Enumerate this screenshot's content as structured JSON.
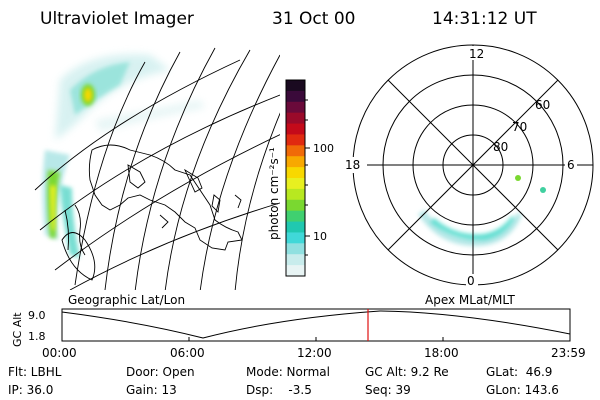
{
  "header": {
    "title": "Ultraviolet Imager",
    "date": "31 Oct 00",
    "time": "14:31:12 UT"
  },
  "colorbar": {
    "unit_label": "photon cm⁻²s⁻¹",
    "ticks": [
      "100",
      "10"
    ],
    "colors": [
      "#1a0a20",
      "#3a0a3a",
      "#6a0a3a",
      "#9a0a2a",
      "#c40a1a",
      "#e02a10",
      "#f06a08",
      "#f8a800",
      "#f8d800",
      "#e8f020",
      "#b8e820",
      "#7ad830",
      "#40d070",
      "#20c8b0",
      "#40d8d8",
      "#90e0e0",
      "#c8ecec",
      "#e8f4f4"
    ]
  },
  "geo_panel": {
    "label": "Geographic Lat/Lon"
  },
  "polar_panel": {
    "label": "Apex MLat/MLT",
    "mlt_labels": {
      "top": "12",
      "left": "18",
      "right": "6",
      "bottom": "0"
    },
    "lat_labels": [
      "60",
      "70",
      "80"
    ]
  },
  "timeline": {
    "axis_label": "GC Alt",
    "y_ticks": [
      "9.0",
      "1.8"
    ],
    "x_ticks": [
      "00:00",
      "06:00",
      "12:00",
      "18:00",
      "23:59"
    ],
    "current_marker_color": "#e01010"
  },
  "info": {
    "flt": "Flt: LBHL",
    "ip": "IP: 36.0",
    "door": "Door: Open",
    "gain": "Gain: 13",
    "mode": "Mode: Normal",
    "dsp": "Dsp:    -3.5",
    "gcalt": "GC Alt: 9.2 Re",
    "seq": "Seq: 39",
    "glat": "GLat:  46.9",
    "glon": "GLon: 143.6"
  }
}
